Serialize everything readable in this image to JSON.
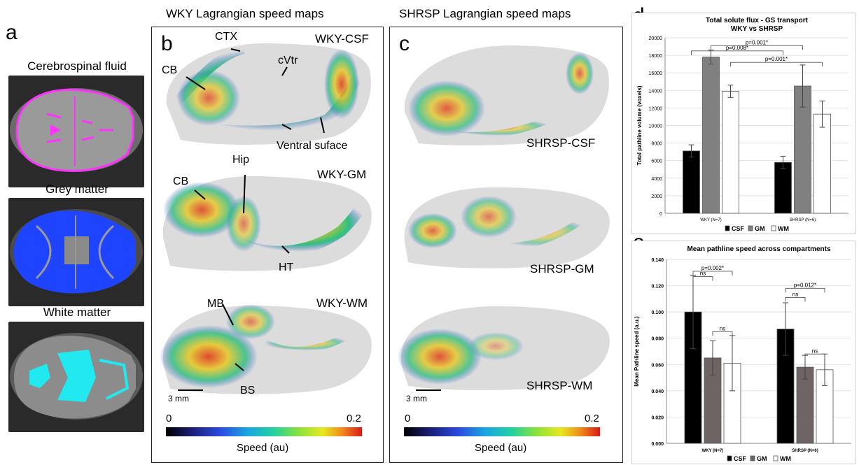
{
  "panel_a": {
    "letter": "a",
    "titles": [
      "Cerebrospinal fluid",
      "Grey matter",
      "White matter"
    ],
    "colors": [
      "#ff33ff",
      "#1f44ff",
      "#22e8f0"
    ]
  },
  "panel_b": {
    "header": "WKY Lagrangian speed maps",
    "letter": "b",
    "labels": [
      "WKY-CSF",
      "WKY-GM",
      "WKY-WM"
    ],
    "annotations": [
      "CTX",
      "cVtr",
      "CB",
      "Ventral suface",
      "CB",
      "Hip",
      "HT",
      "MB",
      "BS"
    ],
    "scale": "3 mm",
    "colorbar": {
      "min": "0",
      "max": "0.2",
      "label": "Speed (au)"
    }
  },
  "panel_c": {
    "header": "SHRSP Lagrangian speed maps",
    "letter": "c",
    "labels": [
      "SHRSP-CSF",
      "SHRSP-GM",
      "SHRSP-WM"
    ],
    "scale": "3 mm",
    "colorbar": {
      "min": "0",
      "max": "0.2",
      "label": "Speed (au)"
    }
  },
  "chart_data": [
    {
      "type": "bar",
      "panel": "d",
      "title": "Total solute flux - GS transport",
      "subtitle": "WKY vs SHRSP",
      "ylabel": "Total pathline volume (voxels)",
      "ylim": [
        0,
        20000
      ],
      "yticks": [
        "0",
        "2000",
        "4000",
        "6000",
        "8000",
        "10000",
        "12000",
        "14000",
        "16000",
        "18000",
        "20000"
      ],
      "categories": [
        "WKY (N=7)",
        "SHRSP (N=6)"
      ],
      "series": [
        {
          "name": "CSF",
          "values": [
            7100,
            5800
          ],
          "errors": [
            700,
            700
          ],
          "color": "#000000"
        },
        {
          "name": "GM",
          "values": [
            17800,
            14500
          ],
          "errors": [
            800,
            2400
          ],
          "color": "#808080"
        },
        {
          "name": "WM",
          "values": [
            13900,
            11300
          ],
          "errors": [
            700,
            1500
          ],
          "color": "#ffffff"
        }
      ],
      "annotations": [
        "p=0.008*",
        "p=0.001*",
        "p=0.001*"
      ]
    },
    {
      "type": "bar",
      "panel": "e",
      "title": "Mean pathline speed across compartments",
      "ylabel": "Mean Pathline speed (a.u.)",
      "ylim": [
        0,
        0.14
      ],
      "yticks": [
        "0.000",
        "0.020",
        "0.040",
        "0.060",
        "0.080",
        "0.100",
        "0.120",
        "0.140"
      ],
      "categories": [
        "WKY (N=7)",
        "SHRSP (N=6)"
      ],
      "series": [
        {
          "name": "CSF",
          "values": [
            0.1,
            0.087
          ],
          "errors": [
            0.028,
            0.02
          ],
          "color": "#000000"
        },
        {
          "name": "GM",
          "values": [
            0.065,
            0.058
          ],
          "errors": [
            0.013,
            0.009
          ],
          "color": "#6e6464"
        },
        {
          "name": "WM",
          "values": [
            0.061,
            0.056
          ],
          "errors": [
            0.021,
            0.012
          ],
          "color": "#ffffff"
        }
      ],
      "annotations": [
        "p=0.002*",
        "ns",
        "ns",
        "p=0.012*",
        "ns",
        "ns"
      ]
    }
  ]
}
